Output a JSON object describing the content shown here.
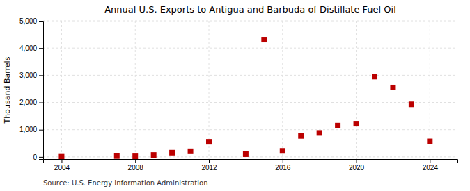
{
  "chart_data": {
    "type": "scatter",
    "title": "Annual U.S. Exports to Antigua and Barbuda of Distillate Fuel Oil",
    "y_label": "Thousand Barrels",
    "annotations": [
      "Source: U.S. Energy Information Administration"
    ],
    "x": [
      2004,
      2007,
      2008,
      2009,
      2010,
      2011,
      2012,
      2014,
      2015,
      2016,
      2017,
      2018,
      2019,
      2020,
      2021,
      2022,
      2023,
      2024
    ],
    "values": [
      5,
      30,
      20,
      70,
      155,
      205,
      555,
      100,
      4310,
      220,
      770,
      880,
      1150,
      1220,
      2950,
      2550,
      1930,
      570
    ],
    "color": "#bb0000",
    "marker": "square",
    "xlim": [
      2003,
      2025.5
    ],
    "ylim": [
      -80,
      5000
    ],
    "xticks": [
      2004,
      2008,
      2012,
      2016,
      2020,
      2024
    ],
    "yticks": [
      0,
      {
        "value": 1000,
        "label": "1,000"
      },
      {
        "value": 2000,
        "label": "2,000"
      },
      {
        "value": 3000,
        "label": "3,000"
      },
      {
        "value": 4000,
        "label": "4,000"
      },
      {
        "value": 5000,
        "label": "5,000"
      }
    ],
    "grid": true
  }
}
